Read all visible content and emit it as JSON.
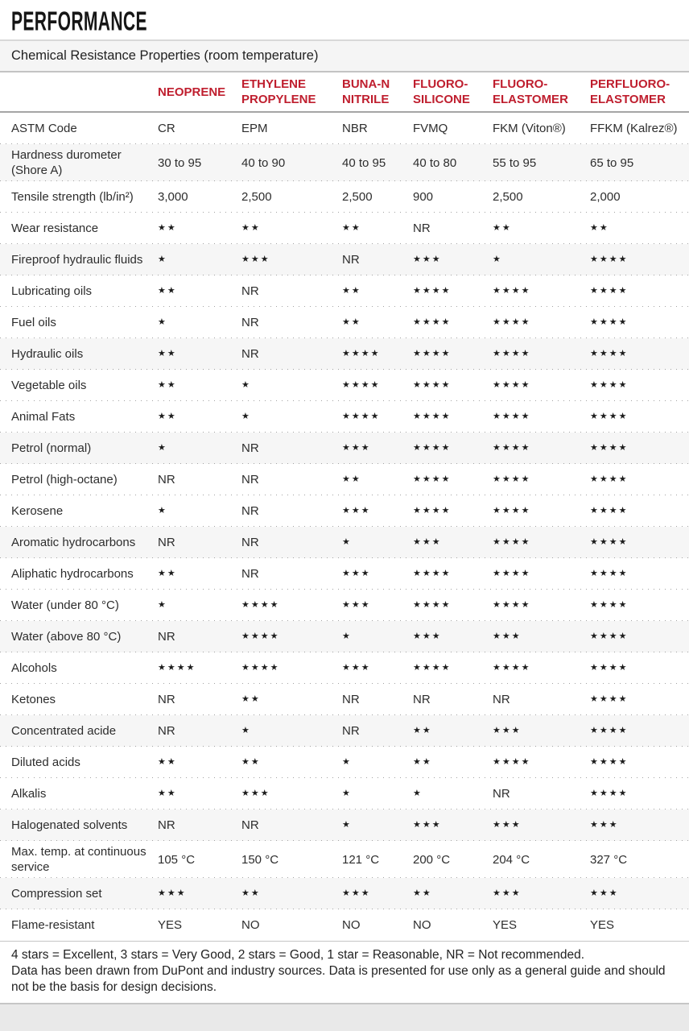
{
  "header": {
    "title": "PERFORMANCE"
  },
  "subtitle_bar": {
    "text": "Chemical Resistance Properties (room temperature)"
  },
  "colors": {
    "accent_red": "#bf1e2e"
  },
  "table": {
    "columns": [
      "NEOPRENE",
      "ETHYLENE\nPROPYLENE",
      "BUNA-N\nNITRILE",
      "FLUORO-\nSILICONE",
      "FLUORO-\nELASTOMER",
      "PERFLUORO-\nELASTOMER"
    ],
    "rows": [
      {
        "label": "ASTM Code",
        "shaded": false,
        "values": [
          "CR",
          "EPM",
          "NBR",
          "FVMQ",
          "FKM (Viton®)",
          "FFKM (Kalrez®)"
        ]
      },
      {
        "label": "Hardness durometer (Shore A)",
        "shaded": true,
        "values": [
          "30 to 95",
          "40 to 90",
          "40 to 95",
          "40 to 80",
          "55 to 95",
          "65 to 95"
        ]
      },
      {
        "label": "Tensile strength (lb/in²)",
        "shaded": false,
        "values": [
          "3,000",
          "2,500",
          "2,500",
          "900",
          "2,500",
          "2,000"
        ]
      },
      {
        "label": "Wear resistance",
        "shaded": false,
        "values": [
          "★★",
          "★★",
          "★★",
          "NR",
          "★★",
          "★★"
        ]
      },
      {
        "label": "Fireproof hydraulic fluids",
        "shaded": true,
        "values": [
          "★",
          "★★★",
          "NR",
          "★★★",
          "★",
          "★★★★"
        ]
      },
      {
        "label": "Lubricating oils",
        "shaded": false,
        "values": [
          "★★",
          "NR",
          "★★",
          "★★★★",
          "★★★★",
          "★★★★"
        ]
      },
      {
        "label": "Fuel oils",
        "shaded": false,
        "values": [
          "★",
          "NR",
          "★★",
          "★★★★",
          "★★★★",
          "★★★★"
        ]
      },
      {
        "label": "Hydraulic oils",
        "shaded": true,
        "values": [
          "★★",
          "NR",
          "★★★★",
          "★★★★",
          "★★★★",
          "★★★★"
        ]
      },
      {
        "label": "Vegetable oils",
        "shaded": false,
        "values": [
          "★★",
          "★",
          "★★★★",
          "★★★★",
          "★★★★",
          "★★★★"
        ]
      },
      {
        "label": "Animal Fats",
        "shaded": false,
        "values": [
          "★★",
          "★",
          "★★★★",
          "★★★★",
          "★★★★",
          "★★★★"
        ]
      },
      {
        "label": "Petrol (normal)",
        "shaded": true,
        "values": [
          "★",
          "NR",
          "★★★",
          "★★★★",
          "★★★★",
          "★★★★"
        ]
      },
      {
        "label": "Petrol (high-octane)",
        "shaded": false,
        "values": [
          "NR",
          "NR",
          "★★",
          "★★★★",
          "★★★★",
          "★★★★"
        ]
      },
      {
        "label": "Kerosene",
        "shaded": false,
        "values": [
          "★",
          "NR",
          "★★★",
          "★★★★",
          "★★★★",
          "★★★★"
        ]
      },
      {
        "label": "Aromatic hydrocarbons",
        "shaded": true,
        "values": [
          "NR",
          "NR",
          "★",
          "★★★",
          "★★★★",
          "★★★★"
        ]
      },
      {
        "label": "Aliphatic hydrocarbons",
        "shaded": false,
        "values": [
          "★★",
          "NR",
          "★★★",
          "★★★★",
          "★★★★",
          "★★★★"
        ]
      },
      {
        "label": "Water (under 80 °C)",
        "shaded": false,
        "values": [
          "★",
          "★★★★",
          "★★★",
          "★★★★",
          "★★★★",
          "★★★★"
        ]
      },
      {
        "label": "Water (above 80 °C)",
        "shaded": true,
        "values": [
          "NR",
          "★★★★",
          "★",
          "★★★",
          "★★★",
          "★★★★"
        ]
      },
      {
        "label": "Alcohols",
        "shaded": false,
        "values": [
          "★★★★",
          "★★★★",
          "★★★",
          "★★★★",
          "★★★★",
          "★★★★"
        ]
      },
      {
        "label": "Ketones",
        "shaded": false,
        "values": [
          "NR",
          "★★",
          "NR",
          "NR",
          "NR",
          "★★★★"
        ]
      },
      {
        "label": "Concentrated acide",
        "shaded": true,
        "values": [
          "NR",
          "★",
          "NR",
          "★★",
          "★★★",
          "★★★★"
        ]
      },
      {
        "label": "Diluted acids",
        "shaded": false,
        "values": [
          "★★",
          "★★",
          "★",
          "★★",
          "★★★★",
          "★★★★"
        ]
      },
      {
        "label": "Alkalis",
        "shaded": false,
        "values": [
          "★★",
          "★★★",
          "★",
          "★",
          "NR",
          "★★★★"
        ]
      },
      {
        "label": "Halogenated solvents",
        "shaded": true,
        "values": [
          "NR",
          "NR",
          "★",
          "★★★",
          "★★★",
          "★★★"
        ]
      },
      {
        "label": "Max. temp. at continuous service",
        "shaded": false,
        "values": [
          "105 °C",
          "150 °C",
          "121 °C",
          "200 °C",
          "204 °C",
          "327 °C"
        ]
      },
      {
        "label": "Compression set",
        "shaded": true,
        "values": [
          "★★★",
          "★★",
          "★★★",
          "★★",
          "★★★",
          "★★★"
        ]
      },
      {
        "label": "Flame-resistant",
        "shaded": false,
        "values": [
          "YES",
          "NO",
          "NO",
          "NO",
          "YES",
          "YES"
        ]
      }
    ]
  },
  "footer": {
    "legend": "4 stars = Excellent, 3 stars = Very Good, 2 stars = Good, 1 star = Reasonable, NR = Not recommended.",
    "disclaimer": "Data has been drawn from DuPont and industry sources. Data is presented for use only as a general guide and should not be the basis for design decisions."
  }
}
